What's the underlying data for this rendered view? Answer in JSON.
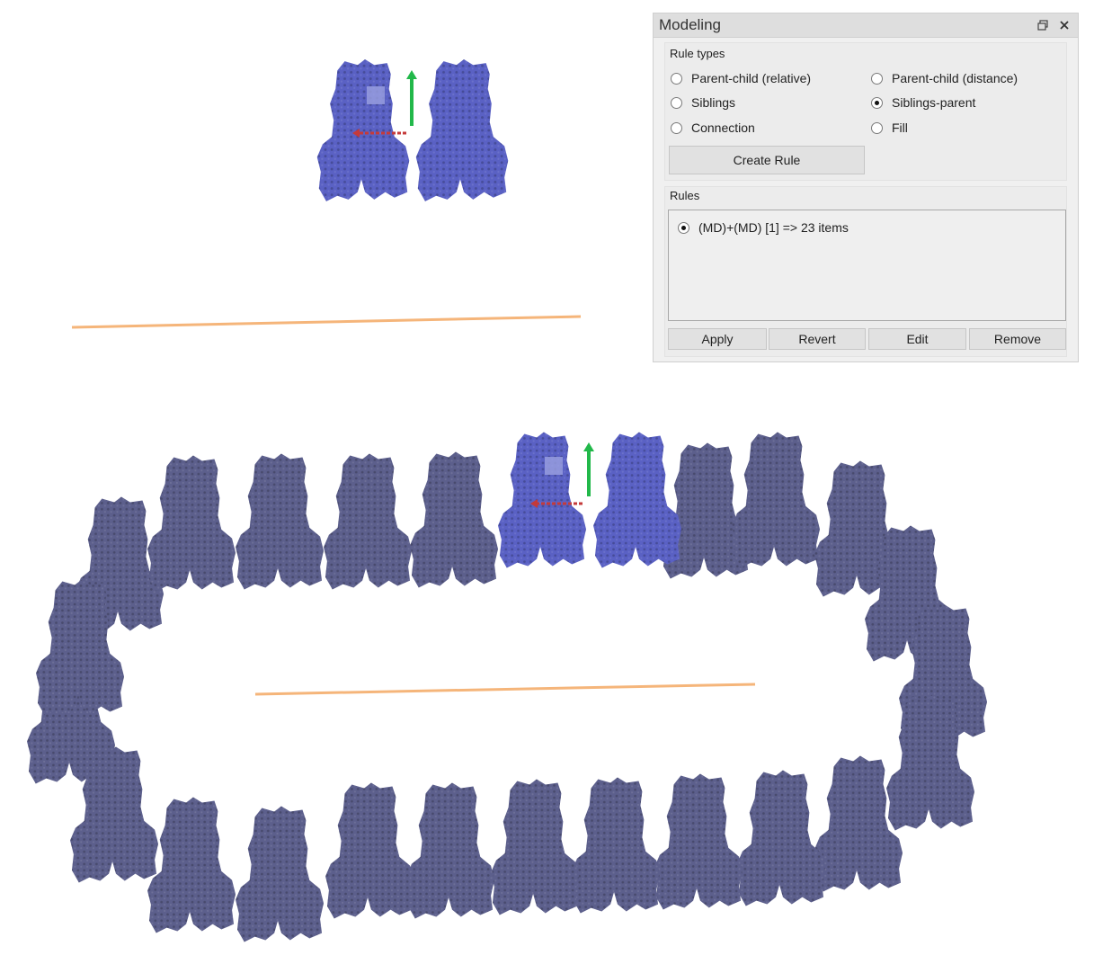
{
  "panel": {
    "title": "Modeling",
    "float_icon": "float-window-icon",
    "close_icon": "close-icon",
    "rule_types": {
      "label": "Rule types",
      "options": [
        {
          "label": "Parent-child (relative)",
          "selected": false
        },
        {
          "label": "Parent-child (distance)",
          "selected": false
        },
        {
          "label": "Siblings",
          "selected": false
        },
        {
          "label": "Siblings-parent",
          "selected": true
        },
        {
          "label": "Connection",
          "selected": false
        },
        {
          "label": "Fill",
          "selected": false
        }
      ],
      "create_button": "Create Rule"
    },
    "rules": {
      "label": "Rules",
      "items": [
        {
          "label": "(MD)+(MD) [1] => 23 items",
          "selected": true
        }
      ],
      "buttons": {
        "apply": "Apply",
        "revert": "Revert",
        "edit": "Edit",
        "remove": "Remove"
      }
    }
  },
  "scene": {
    "selected_color": "#5a61c4",
    "instance_color": "#5c5f8c",
    "guide_line_color": "#f5b57a",
    "axis_y_color": "#22b84a",
    "axis_x_color": "#c43a3a",
    "ring_instance_count": 23
  }
}
